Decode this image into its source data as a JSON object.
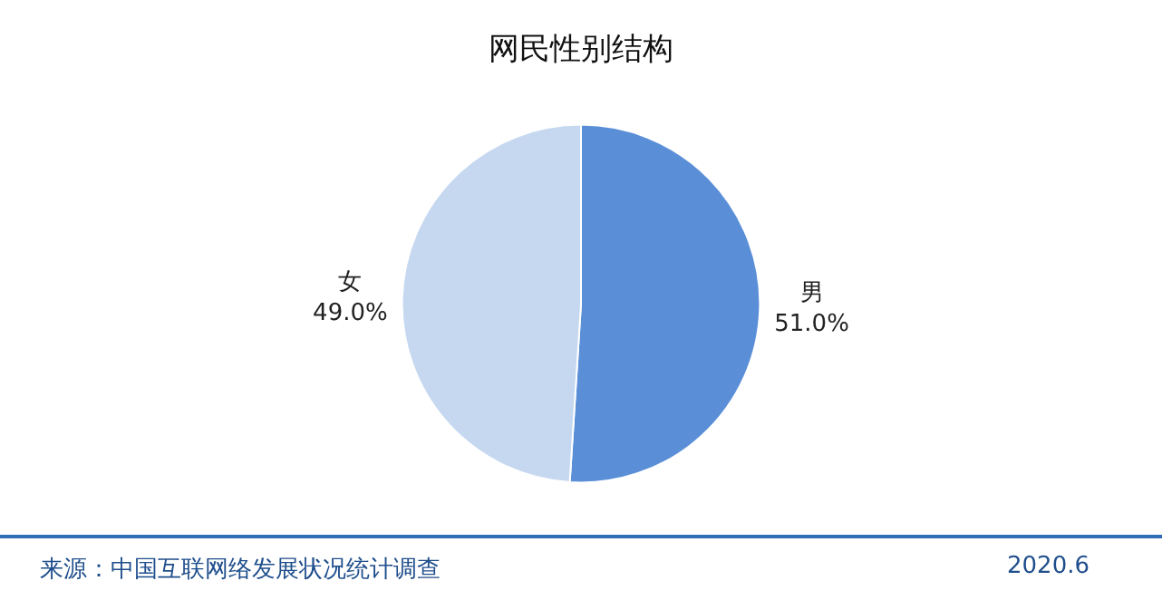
{
  "chart_data": {
    "type": "pie",
    "title": "网民性别结构",
    "categories": [
      "男",
      "女"
    ],
    "values": [
      51.0,
      49.0
    ],
    "value_labels": [
      "51.0%",
      "49.0%"
    ],
    "colors": [
      "#5a8fd8",
      "#c6d8f0"
    ],
    "legend": false,
    "annotations": [
      "来源：中国互联网络发展状况统计调查",
      "2020.6"
    ]
  }
}
